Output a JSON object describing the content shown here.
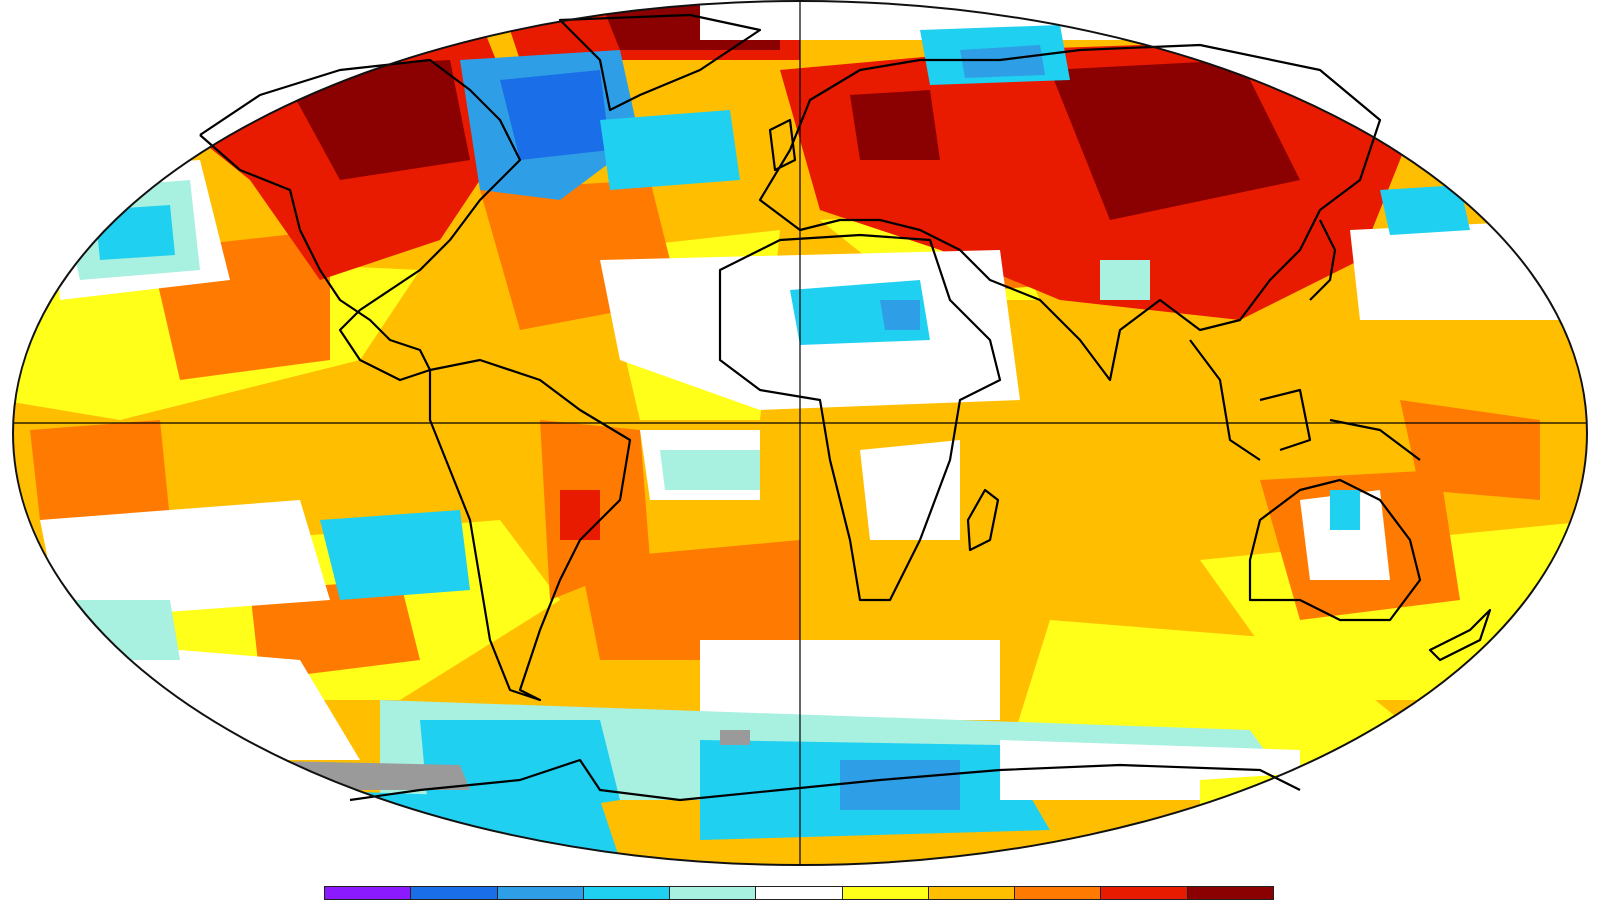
{
  "map": {
    "projection": "robinson",
    "grid_lines": [
      "equator",
      "prime-meridian"
    ],
    "background_color": "#ffffff",
    "outline_color": "#111111",
    "coastline_color": "#000000",
    "no_data_color": "#9a9a9a"
  },
  "legend": {
    "orientation": "horizontal",
    "placement": "bottom",
    "colors": [
      "#8b1aff",
      "#1a6ee8",
      "#2e9fe6",
      "#1fd0f0",
      "#a8f0e0",
      "#ffffff",
      "#ffff1a",
      "#ffbf00",
      "#ff7a00",
      "#e81a00",
      "#8b0000"
    ]
  }
}
